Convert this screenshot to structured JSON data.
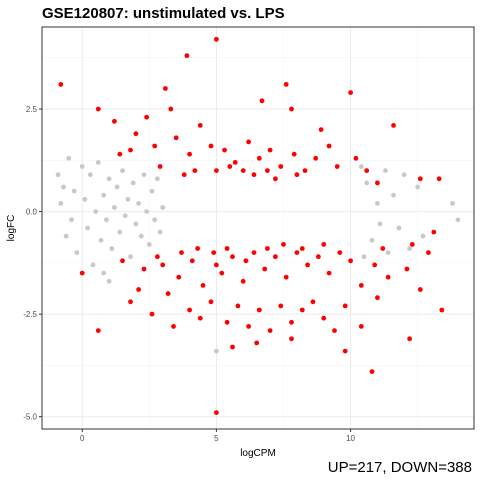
{
  "chart_data": {
    "type": "scatter",
    "title": "GSE120807: unstimulated vs. LPS",
    "xlabel": "logCPM",
    "ylabel": "logFC",
    "xlim": [
      -1.5,
      14.6
    ],
    "ylim": [
      -5.3,
      4.5
    ],
    "xticks": [
      0,
      5,
      10
    ],
    "xtick_labels": [
      "0",
      "5",
      "10"
    ],
    "yticks": [
      2.5,
      0.0,
      -2.5,
      -5.0
    ],
    "ytick_labels": [
      "2.5",
      "0.0",
      "-2.5",
      "-5.0"
    ],
    "grid": true,
    "caption": "UP=217, DOWN=388",
    "colors": {
      "up_down": "#ff0000",
      "not_significant": "#c8c8c8"
    },
    "series": [
      {
        "group": "not_significant",
        "color": "#c8c8c8",
        "points": [
          [
            -0.9,
            0.9
          ],
          [
            -0.7,
            0.6
          ],
          [
            -0.8,
            0.2
          ],
          [
            -0.5,
            1.3
          ],
          [
            -0.4,
            -0.2
          ],
          [
            -0.6,
            -0.6
          ],
          [
            -0.3,
            0.5
          ],
          [
            -0.2,
            -1.0
          ],
          [
            0.0,
            1.1
          ],
          [
            0.1,
            0.3
          ],
          [
            0.2,
            -0.4
          ],
          [
            0.3,
            0.9
          ],
          [
            0.4,
            -1.3
          ],
          [
            0.5,
            0.0
          ],
          [
            0.6,
            1.2
          ],
          [
            0.7,
            -0.7
          ],
          [
            0.8,
            0.4
          ],
          [
            0.9,
            -0.2
          ],
          [
            1.0,
            0.8
          ],
          [
            1.1,
            -0.9
          ],
          [
            1.2,
            0.1
          ],
          [
            1.3,
            0.6
          ],
          [
            1.4,
            -0.5
          ],
          [
            1.5,
            1.0
          ],
          [
            1.6,
            -0.1
          ],
          [
            1.7,
            0.3
          ],
          [
            1.8,
            -1.1
          ],
          [
            1.9,
            0.7
          ],
          [
            2.0,
            -0.3
          ],
          [
            2.1,
            0.2
          ],
          [
            2.2,
            -0.6
          ],
          [
            2.3,
            0.9
          ],
          [
            2.4,
            0.0
          ],
          [
            2.5,
            -0.8
          ],
          [
            2.6,
            0.5
          ],
          [
            2.7,
            -0.2
          ],
          [
            2.8,
            0.8
          ],
          [
            2.9,
            -0.5
          ],
          [
            3.0,
            0.1
          ],
          [
            13.8,
            0.2
          ],
          [
            14.0,
            -0.2
          ],
          [
            12.5,
            0.6
          ],
          [
            12.7,
            -0.6
          ],
          [
            12.0,
            0.9
          ],
          [
            12.2,
            -0.9
          ],
          [
            11.6,
            0.4
          ],
          [
            11.8,
            -0.4
          ],
          [
            11.3,
            1.0
          ],
          [
            11.4,
            -1.0
          ],
          [
            11.0,
            0.2
          ],
          [
            11.1,
            -0.3
          ],
          [
            10.6,
            0.7
          ],
          [
            10.8,
            -0.7
          ],
          [
            10.4,
            1.1
          ],
          [
            10.5,
            -1.1
          ],
          [
            1.0,
            -1.7
          ],
          [
            0.8,
            -1.5
          ],
          [
            5.0,
            -3.4
          ]
        ]
      },
      {
        "group": "up_down",
        "color": "#ff0000",
        "points": [
          [
            -0.8,
            3.1
          ],
          [
            0.6,
            2.5
          ],
          [
            5.0,
            4.2
          ],
          [
            3.9,
            3.8
          ],
          [
            7.6,
            3.1
          ],
          [
            7.8,
            2.5
          ],
          [
            10.0,
            2.9
          ],
          [
            11.6,
            2.1
          ],
          [
            13.3,
            0.8
          ],
          [
            12.6,
            0.8
          ],
          [
            13.1,
            -0.5
          ],
          [
            11.0,
            0.7
          ],
          [
            3.1,
            3.0
          ],
          [
            6.7,
            2.7
          ],
          [
            3.3,
            2.5
          ],
          [
            2.4,
            2.3
          ],
          [
            1.2,
            2.2
          ],
          [
            2.0,
            1.9
          ],
          [
            4.4,
            2.1
          ],
          [
            8.9,
            2.0
          ],
          [
            9.2,
            1.6
          ],
          [
            1.4,
            1.4
          ],
          [
            1.8,
            1.5
          ],
          [
            2.7,
            1.6
          ],
          [
            3.5,
            1.8
          ],
          [
            4.0,
            1.4
          ],
          [
            4.8,
            1.6
          ],
          [
            5.3,
            1.5
          ],
          [
            5.7,
            1.2
          ],
          [
            6.2,
            1.7
          ],
          [
            6.6,
            1.3
          ],
          [
            7.0,
            1.5
          ],
          [
            7.4,
            1.1
          ],
          [
            7.9,
            1.4
          ],
          [
            8.3,
            1.0
          ],
          [
            8.7,
            1.3
          ],
          [
            9.5,
            1.1
          ],
          [
            10.2,
            1.3
          ],
          [
            10.6,
            1.0
          ],
          [
            4.2,
            1.0
          ],
          [
            5.0,
            1.0
          ],
          [
            5.5,
            1.1
          ],
          [
            6.0,
            1.0
          ],
          [
            6.4,
            0.9
          ],
          [
            6.9,
            1.0
          ],
          [
            7.2,
            0.8
          ],
          [
            3.8,
            0.9
          ],
          [
            2.9,
            1.1
          ],
          [
            8.0,
            0.9
          ],
          [
            0.0,
            -1.5
          ],
          [
            0.6,
            -2.9
          ],
          [
            1.5,
            -1.2
          ],
          [
            2.3,
            -1.4
          ],
          [
            2.1,
            -1.9
          ],
          [
            1.8,
            -2.2
          ],
          [
            2.8,
            -1.1
          ],
          [
            3.2,
            -2.0
          ],
          [
            3.6,
            -1.6
          ],
          [
            4.1,
            -1.2
          ],
          [
            4.5,
            -1.8
          ],
          [
            4.9,
            -1.0
          ],
          [
            5.2,
            -1.5
          ],
          [
            5.6,
            -1.1
          ],
          [
            6.0,
            -1.7
          ],
          [
            6.4,
            -1.0
          ],
          [
            6.8,
            -1.4
          ],
          [
            7.2,
            -1.1
          ],
          [
            7.6,
            -1.6
          ],
          [
            8.0,
            -1.0
          ],
          [
            8.4,
            -1.3
          ],
          [
            8.8,
            -1.1
          ],
          [
            9.2,
            -1.5
          ],
          [
            9.6,
            -1.0
          ],
          [
            10.0,
            -1.2
          ],
          [
            10.4,
            -1.8
          ],
          [
            10.9,
            -1.3
          ],
          [
            11.4,
            -1.6
          ],
          [
            12.1,
            -1.4
          ],
          [
            12.6,
            -1.9
          ],
          [
            12.9,
            -1.0
          ],
          [
            2.6,
            -2.5
          ],
          [
            3.4,
            -2.8
          ],
          [
            4.0,
            -2.4
          ],
          [
            4.4,
            -2.6
          ],
          [
            4.8,
            -2.2
          ],
          [
            5.4,
            -2.7
          ],
          [
            5.8,
            -2.3
          ],
          [
            6.2,
            -2.8
          ],
          [
            6.6,
            -2.4
          ],
          [
            7.0,
            -2.9
          ],
          [
            7.4,
            -2.3
          ],
          [
            7.8,
            -2.7
          ],
          [
            8.2,
            -2.4
          ],
          [
            8.6,
            -2.2
          ],
          [
            9.0,
            -2.6
          ],
          [
            9.4,
            -2.9
          ],
          [
            9.8,
            -2.3
          ],
          [
            10.4,
            -2.8
          ],
          [
            11.0,
            -2.1
          ],
          [
            5.6,
            -3.3
          ],
          [
            6.5,
            -3.2
          ],
          [
            7.8,
            -3.1
          ],
          [
            9.8,
            -3.4
          ],
          [
            12.2,
            -3.1
          ],
          [
            13.4,
            -2.4
          ],
          [
            10.8,
            -3.9
          ],
          [
            5.0,
            -4.9
          ],
          [
            3.0,
            -1.3
          ],
          [
            3.7,
            -1.0
          ],
          [
            4.3,
            -0.9
          ],
          [
            5.0,
            -1.3
          ],
          [
            5.4,
            -0.9
          ],
          [
            6.1,
            -1.2
          ],
          [
            6.9,
            -0.9
          ],
          [
            7.5,
            -0.8
          ],
          [
            8.2,
            -0.9
          ],
          [
            9.0,
            -0.8
          ],
          [
            11.2,
            -0.9
          ],
          [
            12.3,
            -0.8
          ]
        ]
      }
    ]
  }
}
